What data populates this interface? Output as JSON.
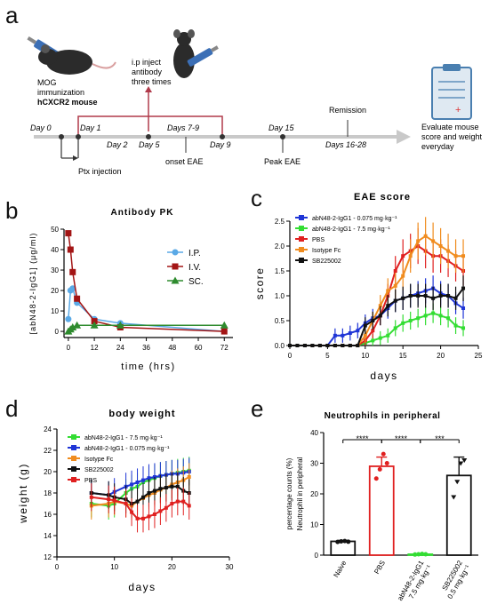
{
  "panel_labels": {
    "a": "a",
    "b": "b",
    "c": "c",
    "d": "d",
    "e": "e"
  },
  "timeline": {
    "mouse_caption_1": "MOG",
    "mouse_caption_2": "immunization",
    "mouse_caption_3": "hCXCR2 mouse",
    "inject_1": "i.p inject",
    "inject_2": "antibody",
    "inject_3": "three times",
    "remission": "Remission",
    "evaluate_1": "Evaluate mouse",
    "evaluate_2": "score and weight",
    "evaluate_3": "everyday",
    "ptx": "Ptx injection",
    "onset": "onset EAE",
    "peak": "Peak EAE",
    "days": [
      "Day 0",
      "Day 1",
      "Day 2",
      "Day 5",
      "Days 7-9",
      "Day 9",
      "Day 15",
      "Days 16-28"
    ],
    "colors": {
      "axis": "#c9c9c9",
      "bracket": "#b03a4a",
      "mark": "#333333"
    }
  },
  "chart_data": [
    {
      "id": "b",
      "type": "line",
      "title": "Antibody PK",
      "xlabel": "time (hrs)",
      "ylabel": "[abN48-2-IgG1] (μg/ml)",
      "xlim": [
        -2,
        76
      ],
      "ylim": [
        -3,
        50
      ],
      "xticks": [
        0,
        12,
        24,
        36,
        48,
        60,
        72
      ],
      "yticks": [
        0,
        10,
        20,
        30,
        40,
        50
      ],
      "legend": "right",
      "series": [
        {
          "name": "I.P.",
          "color": "#5aa9e6",
          "marker": "circle",
          "x": [
            0,
            1,
            2,
            4,
            12,
            24,
            72
          ],
          "y": [
            6,
            20,
            21,
            14,
            6,
            4,
            0
          ]
        },
        {
          "name": "I.V.",
          "color": "#a31515",
          "marker": "square",
          "x": [
            0,
            1,
            2,
            4,
            12,
            24,
            72
          ],
          "y": [
            48,
            40,
            29,
            16,
            5,
            2,
            0
          ]
        },
        {
          "name": "SC.",
          "color": "#2e8b2e",
          "marker": "triangle",
          "x": [
            0,
            1,
            2,
            4,
            12,
            24,
            72
          ],
          "y": [
            0,
            1,
            2,
            3,
            3,
            3,
            3
          ]
        }
      ]
    },
    {
      "id": "c",
      "type": "line",
      "title": "EAE score",
      "xlabel": "days",
      "ylabel": "score",
      "xlim": [
        0,
        25
      ],
      "ylim": [
        0,
        2.5
      ],
      "xticks": [
        0,
        5,
        10,
        15,
        20,
        25
      ],
      "yticks": [
        0.0,
        0.5,
        1.0,
        1.5,
        2.0,
        2.5
      ],
      "legend": "top-left",
      "x": [
        0,
        1,
        2,
        3,
        4,
        5,
        6,
        7,
        8,
        9,
        10,
        11,
        12,
        13,
        14,
        15,
        16,
        17,
        18,
        19,
        20,
        21,
        22,
        23
      ],
      "series": [
        {
          "name": "abN48-2-IgG1 - 0.075 mg·kg⁻¹",
          "color": "#1f35d6",
          "y": [
            0,
            0,
            0,
            0,
            0,
            0,
            0.2,
            0.2,
            0.25,
            0.3,
            0.45,
            0.55,
            0.6,
            0.75,
            0.9,
            0.95,
            1.0,
            1.05,
            1.1,
            1.15,
            1.05,
            1.0,
            0.85,
            0.75
          ]
        },
        {
          "name": "abN48-2-IgG1 - 7.5 mg·kg⁻¹",
          "color": "#33dd33",
          "y": [
            0,
            0,
            0,
            0,
            0,
            0,
            0,
            0,
            0,
            0,
            0.05,
            0.1,
            0.15,
            0.2,
            0.35,
            0.45,
            0.5,
            0.55,
            0.6,
            0.65,
            0.6,
            0.55,
            0.4,
            0.35
          ]
        },
        {
          "name": "PBS",
          "color": "#e02020",
          "y": [
            0,
            0,
            0,
            0,
            0,
            0,
            0,
            0,
            0,
            0,
            0.1,
            0.3,
            0.6,
            1.0,
            1.5,
            1.8,
            1.9,
            2.0,
            1.9,
            1.8,
            1.8,
            1.7,
            1.6,
            1.5
          ]
        },
        {
          "name": "Isotype Fc",
          "color": "#f08c1e",
          "y": [
            0,
            0,
            0,
            0,
            0,
            0,
            0,
            0,
            0,
            0,
            0.2,
            0.5,
            0.8,
            1.1,
            1.2,
            1.4,
            1.8,
            2.1,
            2.2,
            2.1,
            2.0,
            1.9,
            1.8,
            1.8
          ]
        },
        {
          "name": "SB225002",
          "color": "#111111",
          "y": [
            0,
            0,
            0,
            0,
            0,
            0,
            0,
            0,
            0,
            0,
            0.4,
            0.5,
            0.6,
            0.8,
            0.9,
            0.95,
            1.0,
            1.0,
            1.0,
            0.95,
            1.0,
            1.0,
            0.95,
            1.15
          ]
        }
      ]
    },
    {
      "id": "d",
      "type": "line",
      "title": "body weight",
      "xlabel": "days",
      "ylabel": "weight (g)",
      "xlim": [
        0,
        30
      ],
      "ylim": [
        12,
        24
      ],
      "xticks": [
        0,
        10,
        20,
        30
      ],
      "yticks": [
        12,
        14,
        16,
        18,
        20,
        22,
        24
      ],
      "legend": "top-left",
      "x": [
        6,
        9,
        10,
        12,
        13,
        14,
        15,
        16,
        17,
        18,
        19,
        20,
        21,
        22,
        23
      ],
      "series": [
        {
          "name": "abN48-2-IgG1 - 7.5 mg·kg⁻¹",
          "color": "#33dd33",
          "y": [
            17.0,
            16.8,
            17.0,
            18.0,
            18.4,
            18.6,
            19.0,
            19.2,
            19.4,
            19.6,
            19.7,
            19.8,
            19.9,
            20.0,
            20.1
          ]
        },
        {
          "name": "abN48-2-IgG1 - 0.075 mg·kg⁻¹",
          "color": "#1f35d6",
          "y": [
            18.0,
            17.8,
            18.1,
            18.6,
            18.8,
            19.0,
            19.2,
            19.4,
            19.5,
            19.6,
            19.7,
            19.8,
            19.8,
            19.9,
            20.0
          ]
        },
        {
          "name": "Isotype Fc",
          "color": "#f08c1e",
          "y": [
            16.8,
            17.0,
            17.2,
            17.0,
            16.8,
            17.2,
            17.5,
            17.8,
            18.0,
            18.3,
            18.5,
            18.8,
            19.0,
            19.2,
            19.5
          ]
        },
        {
          "name": "SB225002",
          "color": "#111111",
          "y": [
            18.0,
            17.8,
            17.6,
            17.4,
            17.0,
            17.2,
            17.6,
            18.0,
            18.2,
            18.4,
            18.5,
            18.6,
            18.6,
            18.2,
            18.0
          ]
        },
        {
          "name": "PBS",
          "color": "#e02020",
          "y": [
            17.6,
            17.4,
            17.3,
            17.0,
            16.2,
            15.6,
            15.6,
            15.8,
            16.0,
            16.3,
            16.6,
            17.0,
            17.2,
            17.2,
            16.8
          ]
        }
      ]
    },
    {
      "id": "e",
      "type": "bar",
      "title": "Neutrophils in peripheral",
      "ylabel_1": "percentage counts (%)",
      "ylabel_2": "Neutrophil in peripheral",
      "ylim": [
        0,
        40
      ],
      "yticks": [
        0,
        10,
        20,
        30,
        40
      ],
      "categories": [
        "Naive",
        "PBS",
        "abN48-2-IgG1 7.5 mg·kg⁻¹",
        "SB225002 0.5 mg·kg⁻¹"
      ],
      "tick_lines": [
        [
          "Naive"
        ],
        [
          "PBS"
        ],
        [
          "abN48-2-IgG1",
          "7.5 mg·kg⁻¹"
        ],
        [
          "SB225002",
          "0.5 mg·kg⁻¹"
        ]
      ],
      "values": [
        4.5,
        29,
        0.3,
        26
      ],
      "errors": [
        0.3,
        3,
        0.2,
        6
      ],
      "colors": [
        "#111111",
        "#e02020",
        "#33dd33",
        "#111111"
      ],
      "points": [
        [
          4.3,
          4.5,
          4.6,
          4.4
        ],
        [
          25,
          28,
          33,
          30
        ],
        [
          0.2,
          0.3,
          0.4,
          0.3
        ],
        [
          19,
          24,
          30,
          31
        ]
      ],
      "significance": [
        "****",
        "****",
        "***"
      ]
    }
  ]
}
